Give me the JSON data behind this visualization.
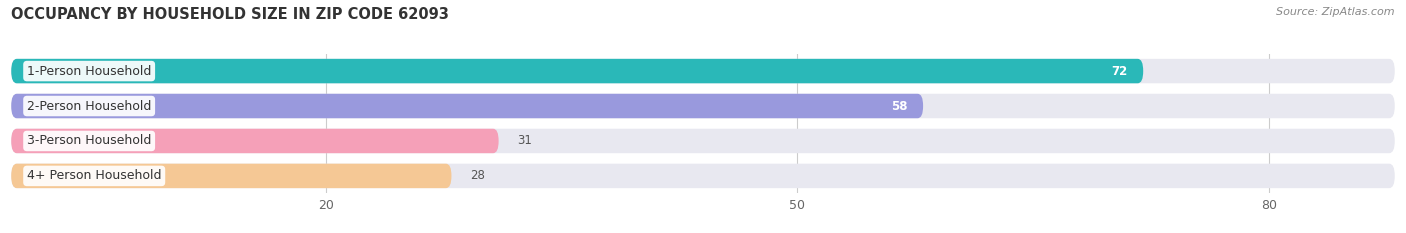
{
  "title": "OCCUPANCY BY HOUSEHOLD SIZE IN ZIP CODE 62093",
  "source": "Source: ZipAtlas.com",
  "categories": [
    "1-Person Household",
    "2-Person Household",
    "3-Person Household",
    "4+ Person Household"
  ],
  "values": [
    72,
    58,
    31,
    28
  ],
  "bar_colors": [
    "#2ab8b8",
    "#9999dd",
    "#f5a0b8",
    "#f5c895"
  ],
  "bar_bg_color": "#e8e8f0",
  "xlim": [
    0,
    88
  ],
  "xticks": [
    20,
    50,
    80
  ],
  "title_fontsize": 10.5,
  "source_fontsize": 8,
  "label_fontsize": 9,
  "value_fontsize": 8.5,
  "background_color": "#ffffff",
  "bar_gap": 0.18,
  "bar_height": 0.7
}
